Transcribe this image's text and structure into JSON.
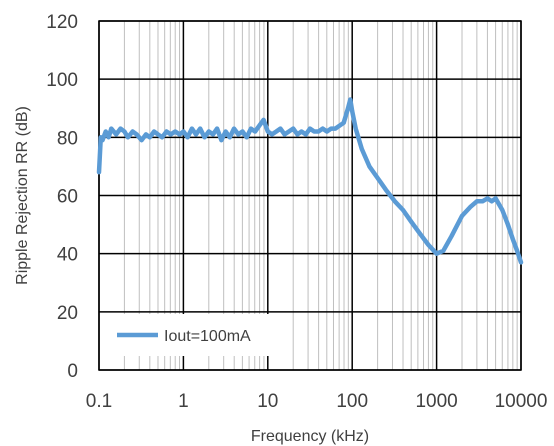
{
  "chart_data": {
    "type": "line",
    "xlabel": "Frequency (kHz)",
    "ylabel": "Ripple Rejection RR (dB)",
    "x_scale": "log",
    "xlim": [
      0.1,
      10000
    ],
    "ylim": [
      0,
      120
    ],
    "x_ticks": [
      "0.1",
      "1",
      "10",
      "100",
      "1000",
      "10000"
    ],
    "y_ticks": [
      "0",
      "20",
      "40",
      "60",
      "80",
      "100",
      "120"
    ],
    "grid": true,
    "legend_position": "bottom-left",
    "series": [
      {
        "name": "Iout=100mA",
        "color": "#5b9bd5",
        "x": [
          0.1,
          0.105,
          0.11,
          0.12,
          0.13,
          0.14,
          0.16,
          0.18,
          0.2,
          0.22,
          0.25,
          0.28,
          0.32,
          0.36,
          0.4,
          0.45,
          0.5,
          0.56,
          0.63,
          0.71,
          0.8,
          0.9,
          1.0,
          1.12,
          1.26,
          1.41,
          1.58,
          1.78,
          2.0,
          2.24,
          2.51,
          2.82,
          3.16,
          3.55,
          3.98,
          4.47,
          5.01,
          5.62,
          6.31,
          7.08,
          7.94,
          8.91,
          10,
          11.2,
          12.6,
          14.1,
          15.8,
          17.8,
          20,
          22.4,
          25.1,
          28.2,
          31.6,
          35.5,
          39.8,
          44.7,
          50.1,
          56.2,
          63.1,
          70.8,
          79.4,
          89.1,
          95,
          100,
          110,
          130,
          160,
          200,
          250,
          320,
          400,
          500,
          630,
          800,
          1000,
          1200,
          1500,
          2000,
          2500,
          3000,
          3500,
          4000,
          4500,
          5000,
          6000,
          7000,
          8000,
          9000,
          10000
        ],
        "values": [
          68,
          80,
          79,
          82,
          80,
          83,
          81,
          83,
          82,
          80,
          82,
          81,
          79,
          81,
          80,
          82,
          81,
          80,
          82,
          81,
          82,
          81,
          82,
          80,
          83,
          81,
          83,
          80,
          82,
          81,
          83,
          79,
          82,
          80,
          83,
          81,
          82,
          80,
          83,
          82,
          84,
          86,
          82,
          81,
          82,
          83,
          81,
          82,
          83,
          81,
          82,
          81,
          83,
          82,
          82,
          83,
          82,
          83,
          83,
          84,
          85,
          90,
          93,
          89,
          83,
          76,
          70,
          66,
          62,
          58,
          55,
          51,
          47,
          43,
          40,
          41,
          46,
          53,
          56,
          58,
          58,
          59,
          58,
          59,
          55,
          50,
          45,
          41,
          37
        ]
      }
    ]
  }
}
